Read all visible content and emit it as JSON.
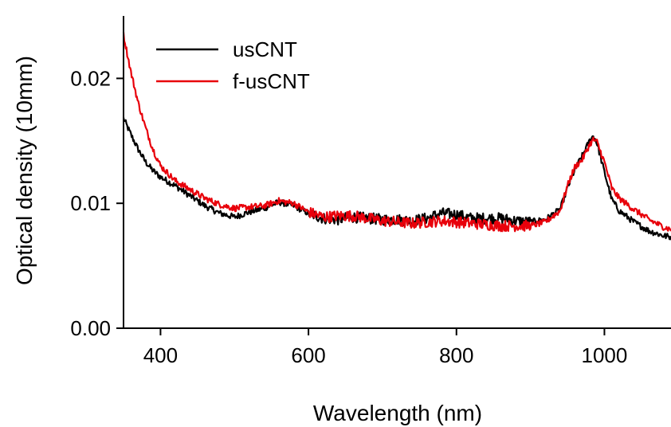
{
  "chart_data": {
    "type": "line",
    "title": "",
    "xlabel": "Wavelength (nm)",
    "ylabel": "Optical density (10mm)",
    "xlim": [
      350,
      1090
    ],
    "ylim": [
      0.0,
      0.025
    ],
    "x_ticks": [
      400,
      600,
      800,
      1000
    ],
    "x_tick_labels": [
      "400",
      "600",
      "800",
      "1000"
    ],
    "y_ticks": [
      0.0,
      0.01,
      0.02
    ],
    "y_tick_labels": [
      "0.00",
      "0.01",
      "0.02"
    ],
    "grid": false,
    "legend_position": "top-left",
    "series": [
      {
        "name": "usCNT",
        "color": "#000000",
        "x": [
          350,
          360,
          370,
          380,
          390,
          400,
          420,
          440,
          460,
          480,
          500,
          520,
          540,
          560,
          580,
          600,
          620,
          640,
          660,
          680,
          700,
          720,
          740,
          760,
          780,
          800,
          820,
          840,
          860,
          880,
          900,
          920,
          940,
          950,
          960,
          970,
          980,
          985,
          990,
          1000,
          1010,
          1020,
          1040,
          1060,
          1080,
          1090
        ],
        "y": [
          0.0168,
          0.0155,
          0.0143,
          0.0133,
          0.0126,
          0.0121,
          0.0114,
          0.0106,
          0.0098,
          0.0092,
          0.0089,
          0.0093,
          0.0096,
          0.0101,
          0.0098,
          0.0092,
          0.0088,
          0.0087,
          0.0089,
          0.0088,
          0.0087,
          0.0087,
          0.0086,
          0.0088,
          0.0092,
          0.0091,
          0.0088,
          0.0088,
          0.0088,
          0.0086,
          0.0085,
          0.0087,
          0.0095,
          0.0112,
          0.0127,
          0.0138,
          0.015,
          0.0154,
          0.0148,
          0.0125,
          0.0103,
          0.0094,
          0.0085,
          0.0078,
          0.0074,
          0.0073
        ]
      },
      {
        "name": "f-usCNT",
        "color": "#e8000b",
        "x": [
          350,
          360,
          370,
          380,
          390,
          400,
          420,
          440,
          460,
          480,
          500,
          520,
          540,
          560,
          580,
          600,
          620,
          640,
          660,
          680,
          700,
          720,
          740,
          760,
          780,
          800,
          820,
          840,
          860,
          880,
          900,
          920,
          940,
          950,
          960,
          970,
          980,
          985,
          990,
          1000,
          1010,
          1020,
          1040,
          1060,
          1080,
          1090
        ],
        "y": [
          0.0235,
          0.0205,
          0.018,
          0.016,
          0.0143,
          0.013,
          0.0118,
          0.0111,
          0.0104,
          0.0099,
          0.0096,
          0.0097,
          0.0098,
          0.0102,
          0.01,
          0.0093,
          0.0089,
          0.009,
          0.009,
          0.0088,
          0.0086,
          0.0085,
          0.0084,
          0.0085,
          0.0086,
          0.0085,
          0.0084,
          0.0083,
          0.0082,
          0.0082,
          0.0082,
          0.0085,
          0.0094,
          0.0114,
          0.0129,
          0.0135,
          0.0147,
          0.0151,
          0.0149,
          0.0133,
          0.0112,
          0.0104,
          0.0095,
          0.0087,
          0.0081,
          0.0079
        ]
      }
    ]
  }
}
